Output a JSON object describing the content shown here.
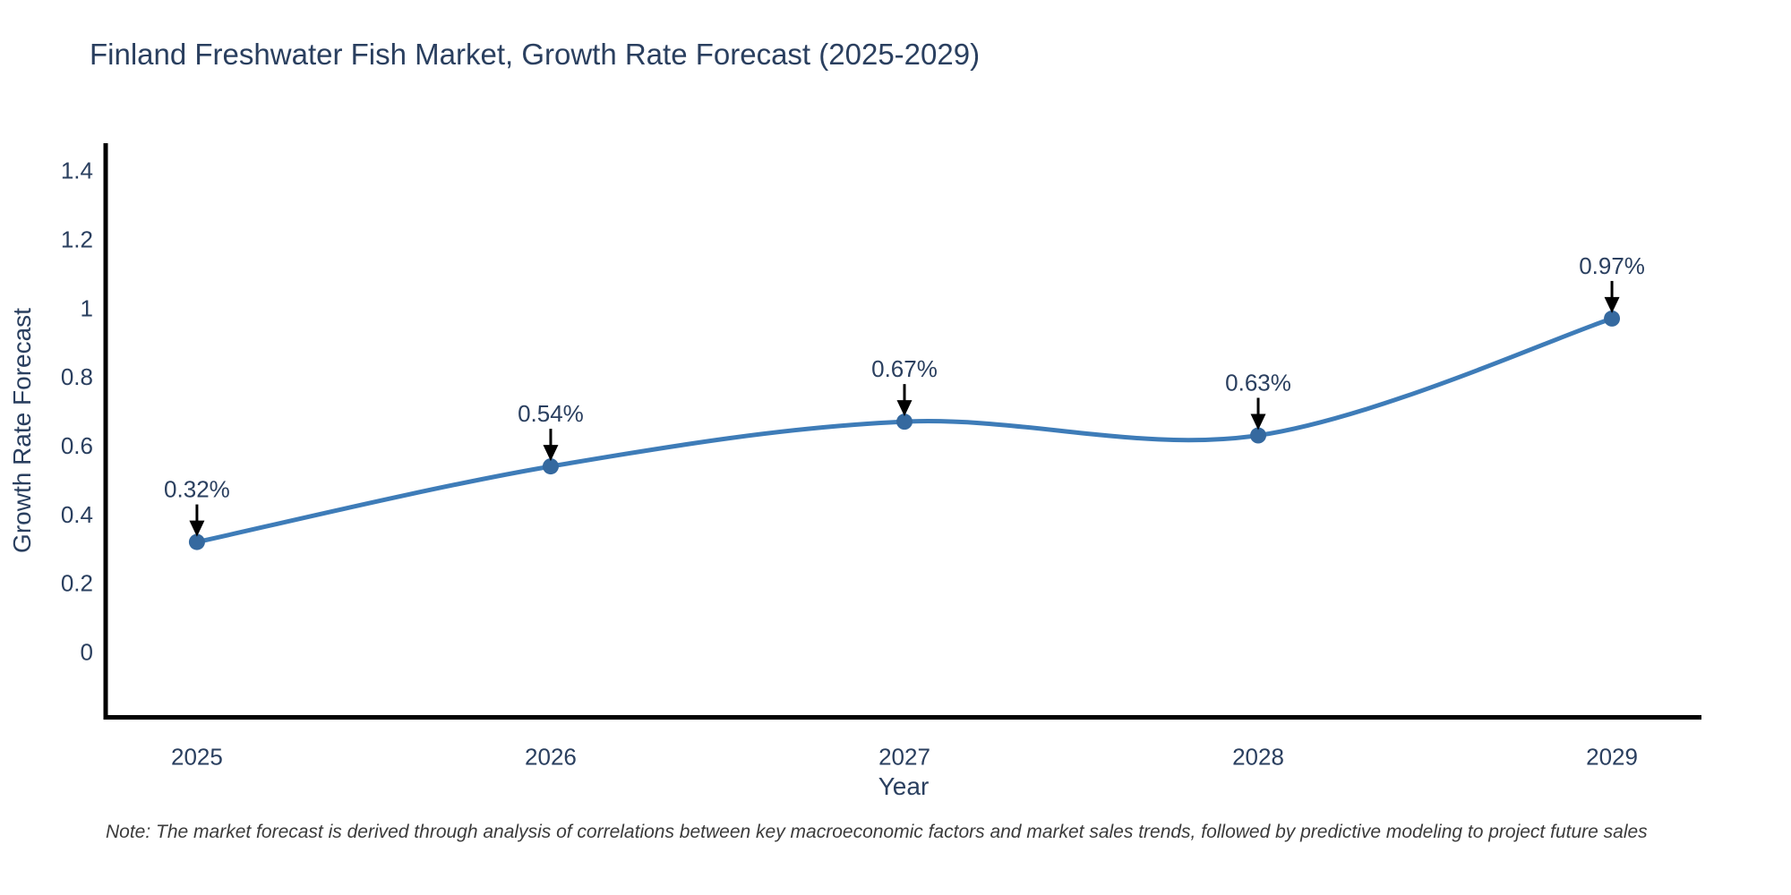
{
  "title": "Finland Freshwater Fish Market, Growth Rate Forecast (2025-2029)",
  "note": "Note: The market forecast is derived through analysis of correlations between key macroeconomic factors and market sales trends, followed by predictive modeling to project future sales",
  "colors": {
    "text": "#2a3f5f",
    "note_text": "#3b3b3b",
    "line": "#3e7cb8",
    "marker": "#35699f",
    "axis": "#000000",
    "arrow": "#000000",
    "background": "#ffffff"
  },
  "chart_data": {
    "type": "line",
    "title": "Finland Freshwater Fish Market, Growth Rate Forecast (2025-2029)",
    "xlabel": "Year",
    "ylabel": "Growth Rate Forecast",
    "x": [
      2025,
      2026,
      2027,
      2028,
      2029
    ],
    "values": [
      0.32,
      0.54,
      0.67,
      0.63,
      0.97
    ],
    "point_labels": [
      "0.32%",
      "0.54%",
      "0.67%",
      "0.63%",
      "0.97%"
    ],
    "xtick_labels": [
      "2025",
      "2026",
      "2027",
      "2028",
      "2029"
    ],
    "ytick_values": [
      0,
      0.2,
      0.4,
      0.6,
      0.8,
      1,
      1.2,
      1.4
    ],
    "ytick_labels": [
      "0",
      "0.2",
      "0.4",
      "0.6",
      "0.8",
      "1",
      "1.2",
      "1.4"
    ],
    "xlim": [
      2024.742,
      2029.253
    ],
    "ylim": [
      -0.19,
      1.48
    ],
    "line_shape": "spline",
    "grid": false,
    "legend": false,
    "annotations_have_arrows": true
  }
}
